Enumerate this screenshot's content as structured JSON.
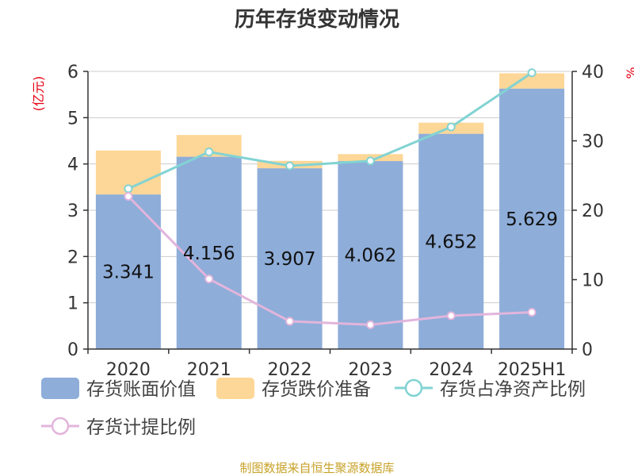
{
  "chart_data": {
    "type": "bar",
    "title": "历年存货变动情况",
    "categories": [
      "2020",
      "2021",
      "2022",
      "2023",
      "2024",
      "2025H1"
    ],
    "series": [
      {
        "name": "存货账面价值",
        "kind": "bar",
        "axis": "left",
        "color": "#8eadd9",
        "values": [
          3.341,
          4.156,
          3.907,
          4.062,
          4.652,
          5.629
        ]
      },
      {
        "name": "存货跌价准备",
        "kind": "bar",
        "axis": "left",
        "color": "#fdd797",
        "values": [
          0.95,
          0.47,
          0.16,
          0.15,
          0.24,
          0.33
        ]
      },
      {
        "name": "存货占净资产比例",
        "kind": "line",
        "axis": "right",
        "color": "#82d3d3",
        "values": [
          23.1,
          28.4,
          26.4,
          27.1,
          32.0,
          39.8
        ]
      },
      {
        "name": "存货计提比例",
        "kind": "line",
        "axis": "right",
        "color": "#e2b5dc",
        "values": [
          22.0,
          10.1,
          4.0,
          3.5,
          4.8,
          5.3
        ]
      }
    ],
    "data_labels": [
      "3.341",
      "4.156",
      "3.907",
      "4.062",
      "4.652",
      "5.629"
    ],
    "left_axis": {
      "unit": "(亿元)",
      "ylim": [
        0,
        6
      ],
      "ticks": [
        "0",
        "1",
        "2",
        "3",
        "4",
        "5",
        "6"
      ]
    },
    "right_axis": {
      "unit": "%",
      "ylim": [
        0,
        40
      ],
      "ticks": [
        "0",
        "10",
        "20",
        "30",
        "40"
      ]
    },
    "grid": true,
    "legend_position": "bottom",
    "source_note": "制图数据来自恒生聚源数据库"
  }
}
